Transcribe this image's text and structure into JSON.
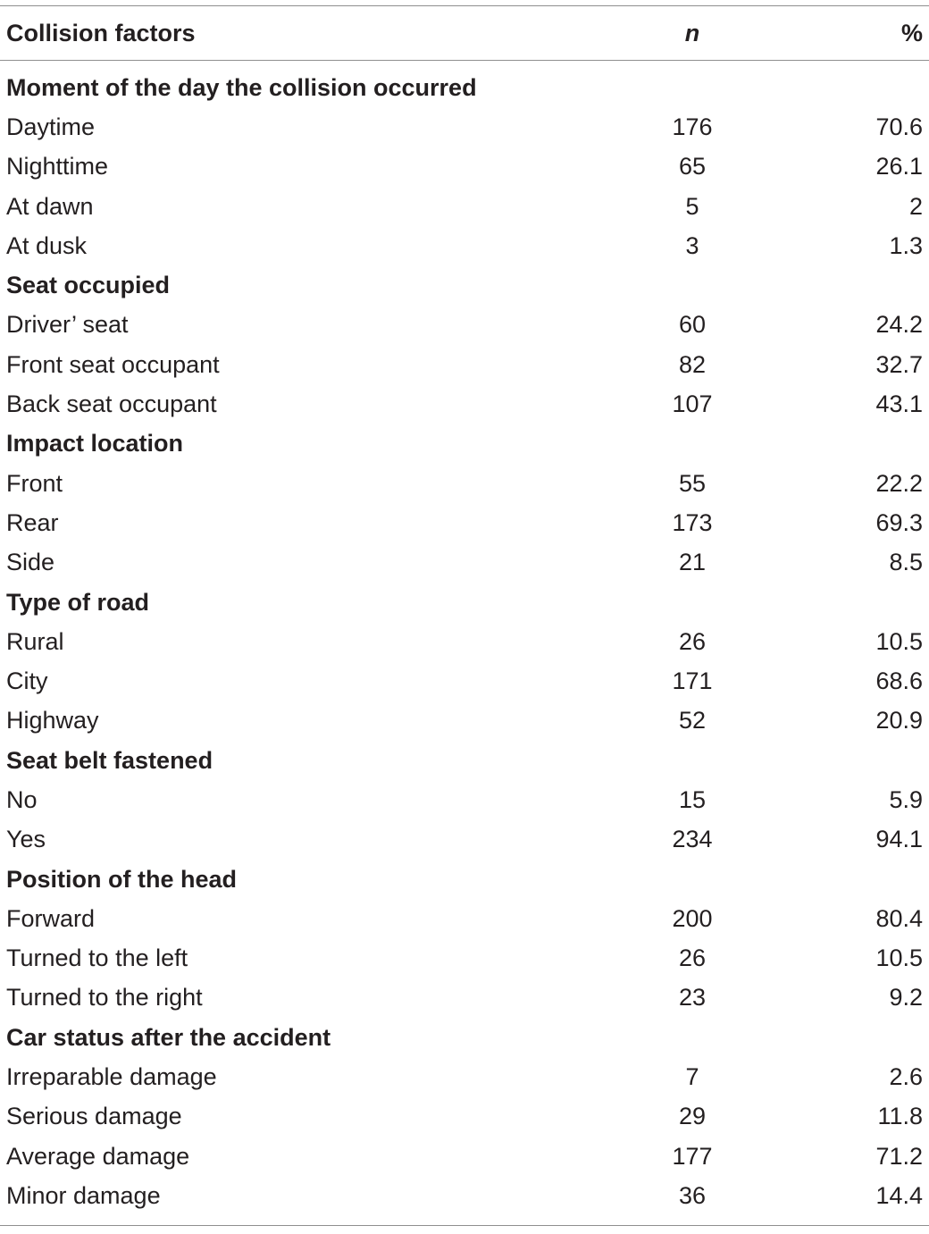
{
  "table": {
    "headers": {
      "factor": "Collision factors",
      "n": "n",
      "percent": "%"
    },
    "sections": [
      {
        "title": "Moment of the day the collision occurred",
        "rows": [
          {
            "label": "Daytime",
            "n": "176",
            "pct": "70.6"
          },
          {
            "label": "Nighttime",
            "n": "65",
            "pct": "26.1"
          },
          {
            "label": "At dawn",
            "n": "5",
            "pct": "2"
          },
          {
            "label": "At dusk",
            "n": "3",
            "pct": "1.3"
          }
        ]
      },
      {
        "title": "Seat occupied",
        "rows": [
          {
            "label": "Driver’ seat",
            "n": "60",
            "pct": "24.2"
          },
          {
            "label": "Front seat occupant",
            "n": "82",
            "pct": "32.7"
          },
          {
            "label": "Back seat occupant",
            "n": "107",
            "pct": "43.1"
          }
        ]
      },
      {
        "title": "Impact location",
        "rows": [
          {
            "label": "Front",
            "n": "55",
            "pct": "22.2"
          },
          {
            "label": "Rear",
            "n": "173",
            "pct": "69.3"
          },
          {
            "label": "Side",
            "n": "21",
            "pct": "8.5"
          }
        ]
      },
      {
        "title": "Type of road",
        "rows": [
          {
            "label": "Rural",
            "n": "26",
            "pct": "10.5"
          },
          {
            "label": "City",
            "n": "171",
            "pct": "68.6"
          },
          {
            "label": "Highway",
            "n": "52",
            "pct": "20.9"
          }
        ]
      },
      {
        "title": "Seat belt fastened",
        "rows": [
          {
            "label": "No",
            "n": "15",
            "pct": "5.9"
          },
          {
            "label": "Yes",
            "n": "234",
            "pct": "94.1"
          }
        ]
      },
      {
        "title": "Position of the head",
        "rows": [
          {
            "label": "Forward",
            "n": "200",
            "pct": "80.4"
          },
          {
            "label": "Turned to the left",
            "n": "26",
            "pct": "10.5"
          },
          {
            "label": "Turned to the right",
            "n": "23",
            "pct": "9.2"
          }
        ]
      },
      {
        "title": "Car status after the accident",
        "rows": [
          {
            "label": "Irreparable damage",
            "n": "7",
            "pct": "2.6"
          },
          {
            "label": "Serious damage",
            "n": "29",
            "pct": "11.8"
          },
          {
            "label": "Average damage",
            "n": "177",
            "pct": "71.2"
          },
          {
            "label": "Minor damage",
            "n": "36",
            "pct": "14.4"
          }
        ]
      }
    ]
  }
}
